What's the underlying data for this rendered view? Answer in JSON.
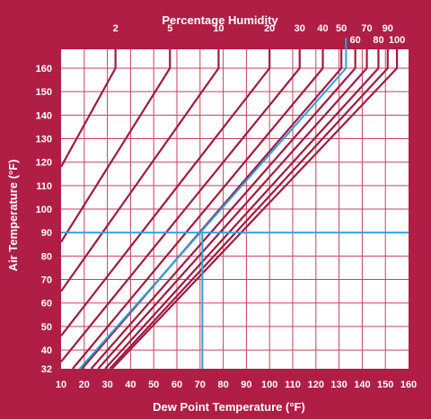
{
  "chart_data": {
    "type": "line",
    "title": "Percentage Humidity",
    "xlabel": "Dew Point  Temperature (°F)",
    "ylabel": "Air Temperature (°F)",
    "xlim": [
      10,
      160
    ],
    "ylim": [
      32,
      165
    ],
    "grid": true,
    "x_ticks": [
      10,
      20,
      30,
      40,
      50,
      60,
      70,
      80,
      90,
      100,
      110,
      120,
      130,
      140,
      150,
      160
    ],
    "y_ticks": [
      32,
      40,
      50,
      60,
      70,
      80,
      90,
      100,
      110,
      120,
      130,
      140,
      150,
      160
    ],
    "series": [
      {
        "name": "2",
        "points": [
          [
            10,
            118
          ],
          [
            33.5,
            160
          ]
        ]
      },
      {
        "name": "5",
        "points": [
          [
            10,
            86
          ],
          [
            57,
            160
          ]
        ]
      },
      {
        "name": "10",
        "points": [
          [
            10,
            65
          ],
          [
            78,
            160
          ]
        ]
      },
      {
        "name": "20",
        "points": [
          [
            10,
            46
          ],
          [
            100,
            160
          ]
        ]
      },
      {
        "name": "30",
        "points": [
          [
            10,
            35
          ],
          [
            113,
            160
          ]
        ]
      },
      {
        "name": "40",
        "points": [
          [
            15,
            32
          ],
          [
            123,
            160
          ]
        ]
      },
      {
        "name": "50",
        "points": [
          [
            19,
            32
          ],
          [
            131,
            160
          ]
        ]
      },
      {
        "name": "60",
        "points": [
          [
            23,
            32
          ],
          [
            137,
            160
          ]
        ]
      },
      {
        "name": "70",
        "points": [
          [
            26,
            32
          ],
          [
            142,
            160
          ]
        ]
      },
      {
        "name": "80",
        "points": [
          [
            29,
            32
          ],
          [
            147,
            160
          ]
        ]
      },
      {
        "name": "90",
        "points": [
          [
            31,
            32
          ],
          [
            151,
            160
          ]
        ]
      },
      {
        "name": "100",
        "points": [
          [
            32,
            32
          ],
          [
            155,
            160
          ]
        ]
      }
    ],
    "example": {
      "air_temperature": 90,
      "dew_point": 71,
      "humidity": "50",
      "path": [
        [
          18,
          32
        ],
        [
          133,
          160
        ]
      ],
      "color": "#2AA3DB"
    },
    "colors": {
      "background": "#B01E45",
      "grid": "#C7415F",
      "curve": "#A01A40",
      "plot_area": "#ffffff",
      "example_line": "#2AA3DB"
    }
  }
}
